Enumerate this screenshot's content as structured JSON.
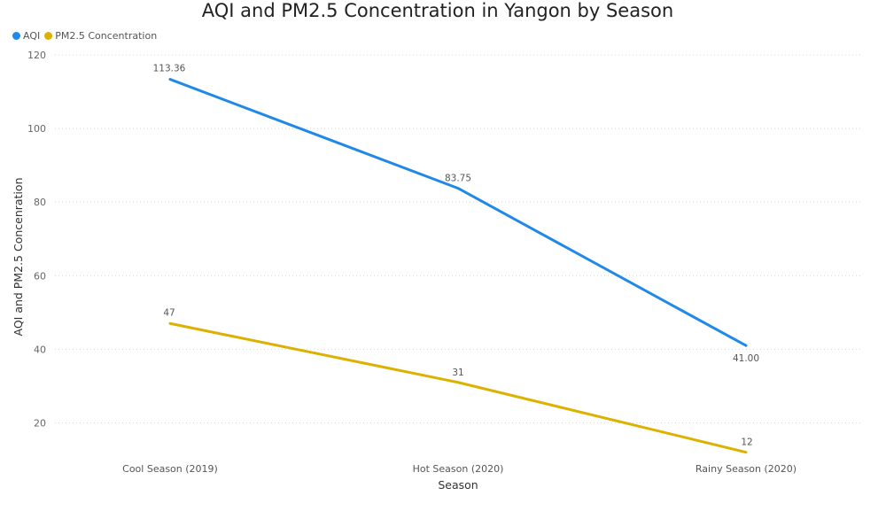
{
  "chart_data": {
    "type": "line",
    "title": "AQI and PM2.5 Concentration in Yangon by Season",
    "xlabel": "Season",
    "ylabel": "AQI and PM2.5 Concenration",
    "categories": [
      "Cool Season (2019)",
      "Hot Season (2020)",
      "Rainy Season (2020)"
    ],
    "ylim": [
      10,
      120
    ],
    "yticks": [
      20,
      40,
      60,
      80,
      100,
      120
    ],
    "grid": true,
    "legend_position": "top-left",
    "series": [
      {
        "name": "AQI",
        "color": "#2089E8",
        "values": [
          113.36,
          83.75,
          41.0
        ],
        "labels": [
          "113.36",
          "83.75",
          "41.00"
        ]
      },
      {
        "name": "PM2.5 Concentration",
        "color": "#DDB100",
        "values": [
          47,
          31,
          12
        ],
        "labels": [
          "47",
          "31",
          "12"
        ]
      }
    ]
  }
}
